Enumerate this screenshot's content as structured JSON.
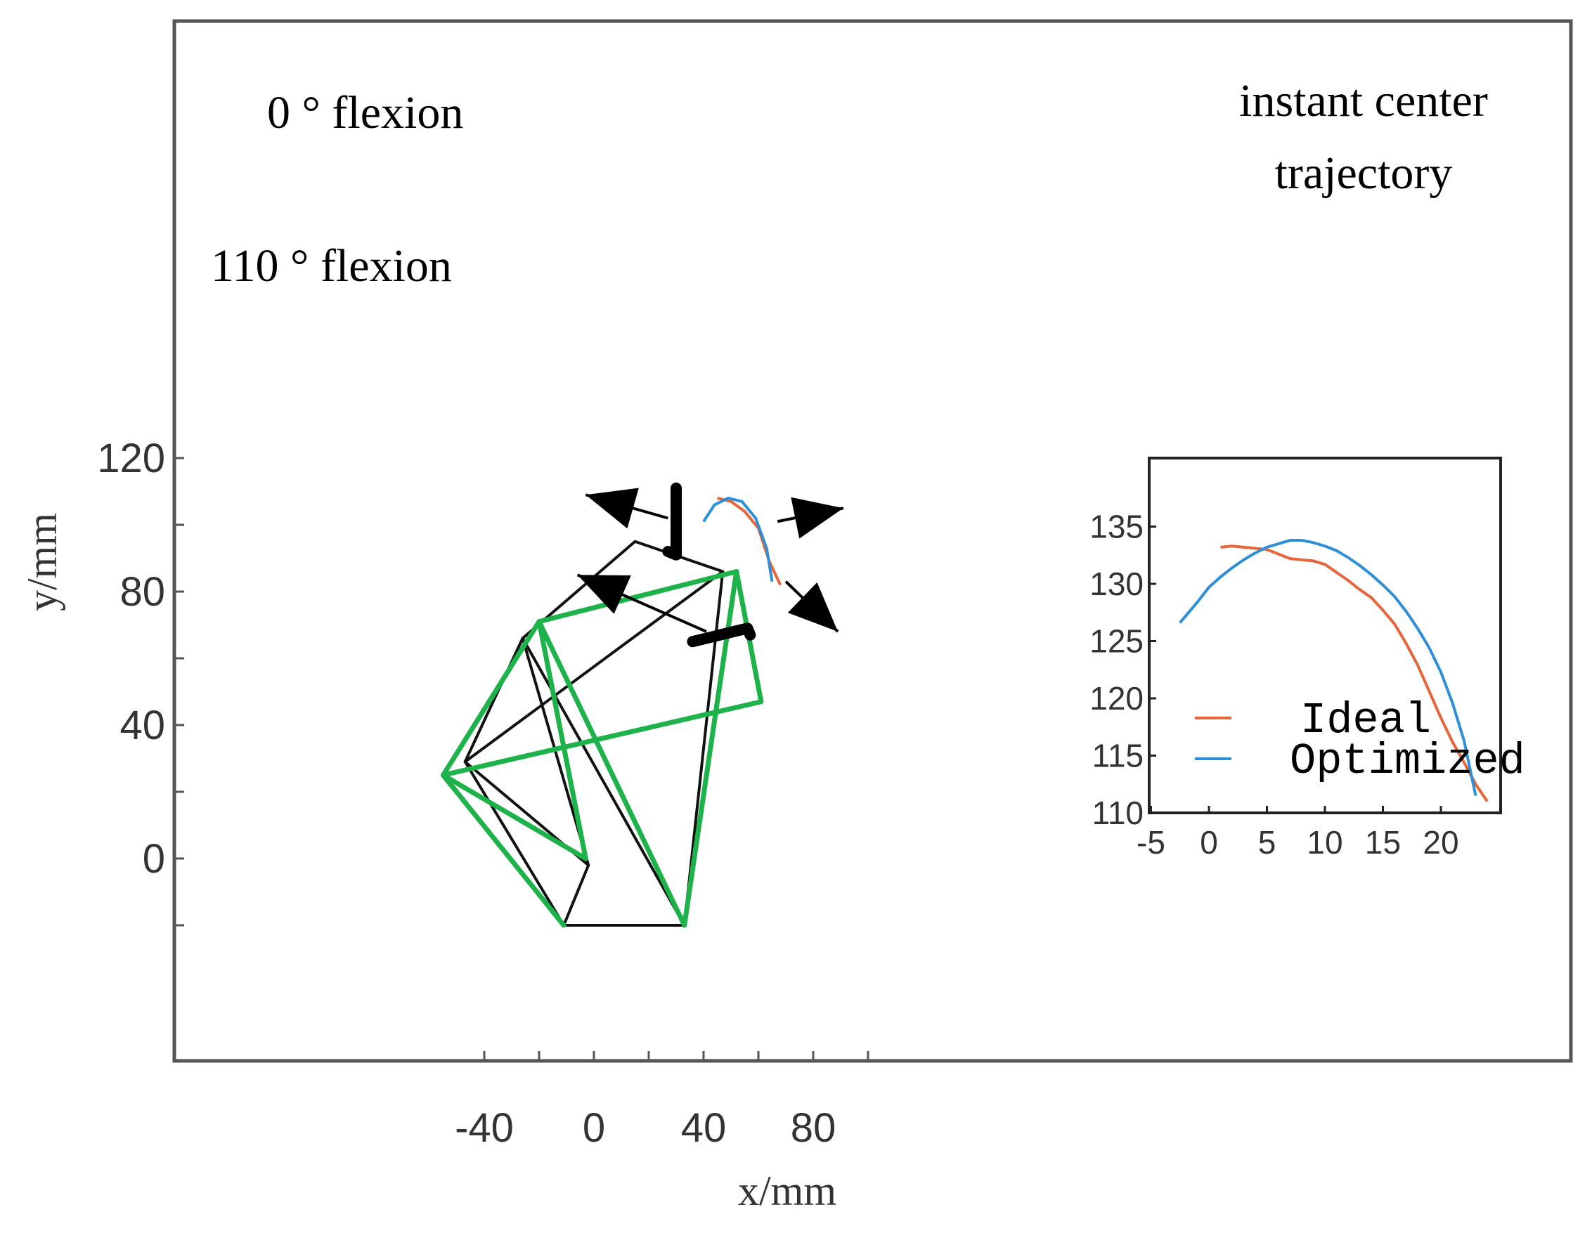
{
  "chart_data": [
    {
      "type": "line",
      "xlabel": "x/mm",
      "ylabel": "y/mm",
      "xlim": [
        -60,
        140
      ],
      "ylim": [
        -30,
        125
      ],
      "xticks": [
        -40,
        0,
        40,
        80
      ],
      "yticks": [
        0,
        40,
        80,
        120
      ],
      "grid": false,
      "linkages": [
        {
          "name": "",
          "color": "#111111",
          "points": [
            [
              -47,
              29
            ],
            [
              -26,
              66
            ],
            [
              15,
              95
            ],
            [
              47,
              86
            ],
            [
              33,
              -20
            ],
            [
              -11,
              -20
            ],
            [
              -47,
              29
            ]
          ],
          "diagonals": [
            [
              [
                -47,
                29
              ],
              [
                47,
                86
              ]
            ],
            [
              [
                -26,
                66
              ],
              [
                -2,
                -2
              ]
            ],
            [
              [
                -47,
                29
              ],
              [
                -2,
                -2
              ]
            ],
            [
              [
                -26,
                66
              ],
              [
                33,
                -20
              ]
            ],
            [
              [
                -11,
                -20
              ],
              [
                -2,
                -2
              ]
            ]
          ]
        },
        {
          "name": "",
          "color": "#1db34a",
          "points": [
            [
              -55,
              25
            ],
            [
              -20,
              71
            ],
            [
              52,
              86
            ],
            [
              61,
              47
            ],
            [
              -55,
              25
            ]
          ],
          "diagonals": [
            [
              [
                -20,
                71
              ],
              [
                33,
                -20
              ]
            ],
            [
              [
                52,
                86
              ],
              [
                33,
                -20
              ]
            ],
            [
              [
                -55,
                25
              ],
              [
                -11,
                -20
              ]
            ],
            [
              [
                -55,
                25
              ],
              [
                -3,
                0
              ]
            ],
            [
              [
                -20,
                71
              ],
              [
                -3,
                0
              ]
            ]
          ]
        }
      ],
      "markers": [
        {
          "name": "0-flexion-bar",
          "points": [
            [
              30,
              111
            ],
            [
              30,
              91
            ],
            [
              27,
              92
            ]
          ]
        },
        {
          "name": "110-flexion-bar",
          "points": [
            [
              36,
              65
            ],
            [
              56,
              69
            ],
            [
              57,
              67
            ]
          ]
        }
      ],
      "small_trajectory": {
        "ideal": [
          [
            45,
            108
          ],
          [
            50,
            107
          ],
          [
            55,
            104
          ],
          [
            60,
            99
          ],
          [
            64,
            89
          ],
          [
            68,
            82
          ]
        ],
        "optimized": [
          [
            40,
            101
          ],
          [
            44,
            106
          ],
          [
            49,
            108
          ],
          [
            54,
            107
          ],
          [
            59,
            102
          ],
          [
            63,
            93
          ],
          [
            65,
            83
          ]
        ]
      },
      "annotations": [
        {
          "text": "0 ° flexion",
          "anchor": [
            -38,
            108
          ]
        },
        {
          "text": "110 ° flexion",
          "anchor": [
            -40,
            84
          ]
        },
        {
          "text": "instant center",
          "anchor": [
            110,
            112
          ]
        },
        {
          "text": "trajectory",
          "anchor": [
            110,
            101
          ]
        }
      ]
    },
    {
      "type": "line",
      "inset": true,
      "xlim": [
        -5,
        25
      ],
      "ylim": [
        110,
        140
      ],
      "xticks": [
        -5,
        0,
        5,
        10,
        15,
        20
      ],
      "xtick_labels": [
        "-5",
        "0",
        "5",
        "10",
        "15",
        "20"
      ],
      "yticks": [
        110,
        115,
        120,
        125,
        130,
        135
      ],
      "legend": "bottom-left",
      "series": [
        {
          "name": "Ideal",
          "color": "#e8643a",
          "x": [
            1,
            2,
            3,
            4,
            5,
            6,
            7,
            8,
            9,
            10,
            11,
            12,
            13,
            14,
            15,
            16,
            17,
            18,
            19,
            20,
            21,
            22,
            23,
            24
          ],
          "y": [
            133.2,
            133.3,
            133.2,
            133.1,
            133.0,
            132.6,
            132.2,
            132.1,
            132.0,
            131.7,
            131.0,
            130.3,
            129.5,
            128.8,
            127.7,
            126.5,
            124.8,
            122.9,
            120.6,
            118.3,
            116.2,
            114.4,
            112.5,
            111.0
          ]
        },
        {
          "name": "Optimized",
          "color": "#2d8fd8",
          "x": [
            -2.5,
            -1,
            0,
            1,
            2,
            3,
            4,
            5,
            6,
            7,
            8,
            9,
            10,
            11,
            12,
            13,
            14,
            15,
            16,
            17,
            18,
            19,
            20,
            21,
            22,
            23
          ],
          "y": [
            126.6,
            128.4,
            129.7,
            130.6,
            131.4,
            132.1,
            132.7,
            133.2,
            133.5,
            133.8,
            133.8,
            133.6,
            133.3,
            132.9,
            132.3,
            131.6,
            130.8,
            129.9,
            128.9,
            127.6,
            126.1,
            124.4,
            122.3,
            119.6,
            116.3,
            111.5
          ]
        }
      ]
    }
  ]
}
